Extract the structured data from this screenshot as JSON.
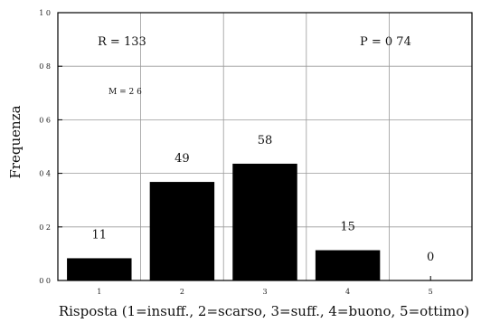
{
  "chart_data": {
    "type": "bar",
    "categories": [
      "1",
      "2",
      "3",
      "4",
      "5"
    ],
    "values": [
      0.083,
      0.368,
      0.436,
      0.113,
      0.0
    ],
    "data_labels": [
      "11",
      "49",
      "58",
      "15",
      "0"
    ],
    "xlabel": "Risposta (1=insuff., 2=scarso, 3=suff., 4=buono, 5=ottimo)",
    "ylabel": "Frequenza",
    "ylim": [
      0,
      1.0
    ],
    "yticks": [
      "0 0",
      "0 2",
      "0 4",
      "0 6",
      "0 8",
      "1 0"
    ],
    "grid": true,
    "bar_color": "#000000",
    "annotations": {
      "r": "R = 133",
      "p": "P = 0 74",
      "m": "M = 2 6"
    }
  }
}
